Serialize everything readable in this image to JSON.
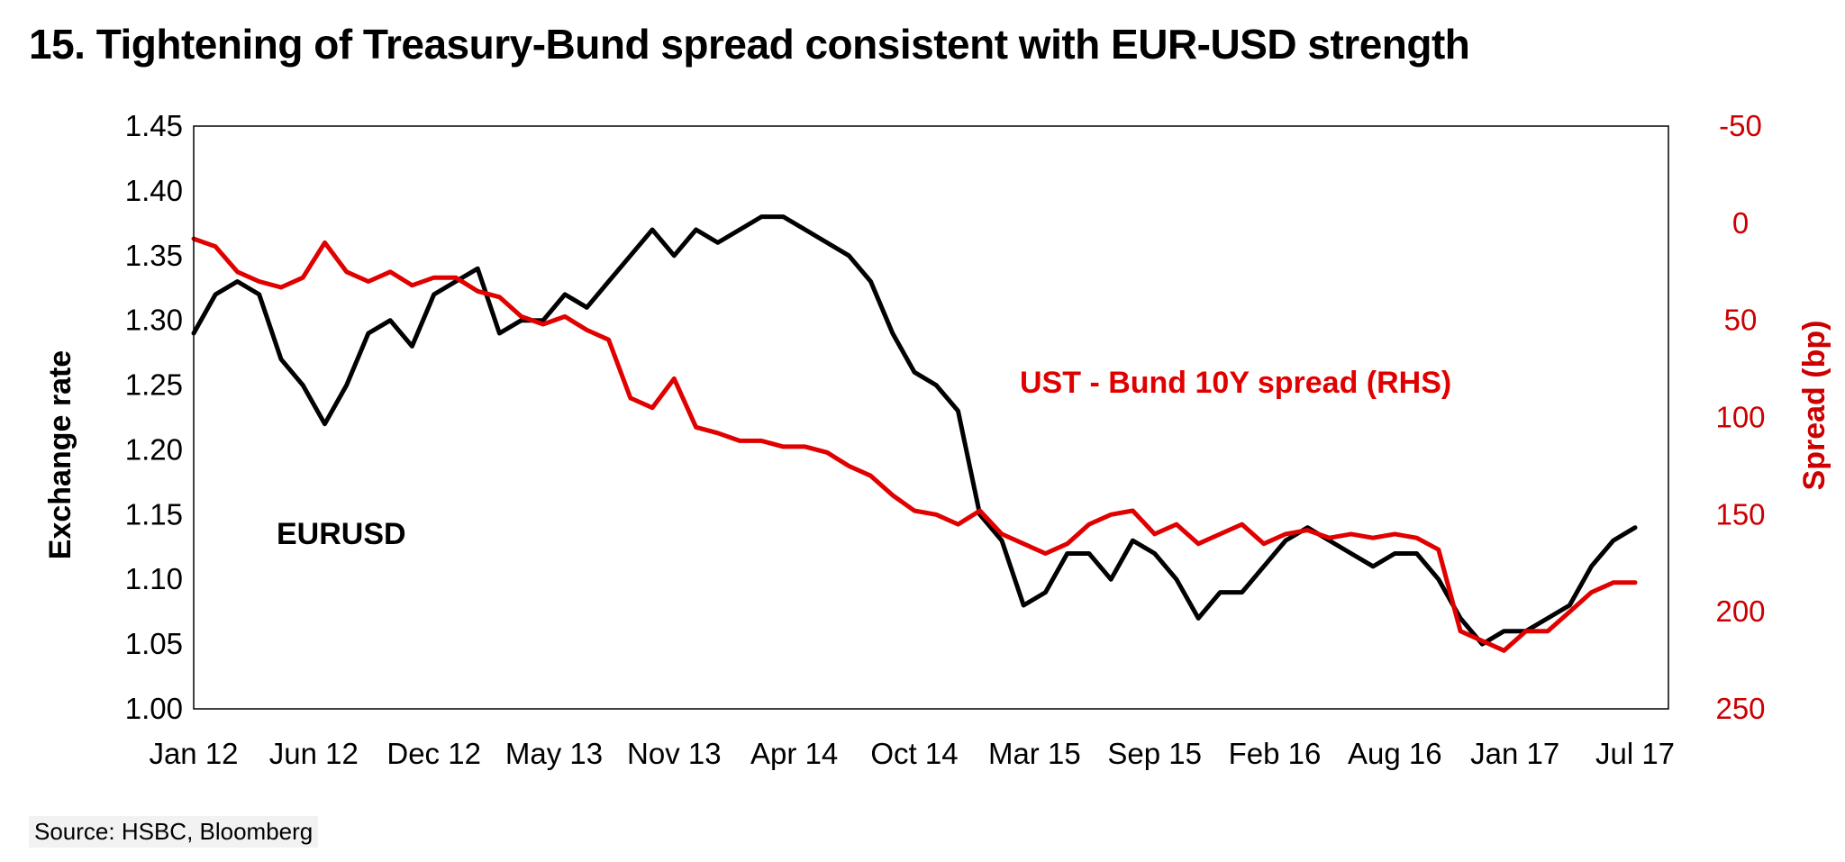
{
  "title": "15. Tightening of Treasury-Bund spread consistent with EUR-USD strength",
  "source": "Source:  HSBC, Bloomberg",
  "colors": {
    "eurusd": "#000000",
    "spread": "#e00000",
    "right_axis": "#cc0000"
  },
  "chart_data": {
    "type": "line",
    "title": "15. Tightening of Treasury-Bund spread consistent with EUR-USD strength",
    "xlabel": "",
    "x_tick_labels": [
      "Jan 12",
      "Jun 12",
      "Dec 12",
      "May 13",
      "Nov 13",
      "Apr 14",
      "Oct 14",
      "Mar 15",
      "Sep 15",
      "Feb 16",
      "Aug 16",
      "Jan 17",
      "Jul 17"
    ],
    "left_axis": {
      "label": "Exchange rate",
      "ylim": [
        1.0,
        1.45
      ],
      "ticks": [
        "1.45",
        "1.40",
        "1.35",
        "1.30",
        "1.25",
        "1.20",
        "1.15",
        "1.10",
        "1.05",
        "1.00"
      ]
    },
    "right_axis": {
      "label": "Spread (bp)",
      "ylim": [
        -50,
        250
      ],
      "inverted": true,
      "ticks": [
        "-50",
        "0",
        "50",
        "100",
        "150",
        "200",
        "250"
      ]
    },
    "grid": false,
    "annotations": {
      "eurusd": "EURUSD",
      "spread": "UST - Bund 10Y spread (RHS)"
    },
    "series": [
      {
        "name": "EURUSD",
        "axis": "left",
        "x": [
          "2012-01",
          "2012-02",
          "2012-03",
          "2012-04",
          "2012-05",
          "2012-06",
          "2012-07",
          "2012-08",
          "2012-09",
          "2012-10",
          "2012-11",
          "2012-12",
          "2013-01",
          "2013-02",
          "2013-03",
          "2013-04",
          "2013-05",
          "2013-06",
          "2013-07",
          "2013-08",
          "2013-09",
          "2013-10",
          "2013-11",
          "2013-12",
          "2014-01",
          "2014-02",
          "2014-03",
          "2014-04",
          "2014-05",
          "2014-06",
          "2014-07",
          "2014-08",
          "2014-09",
          "2014-10",
          "2014-11",
          "2014-12",
          "2015-01",
          "2015-02",
          "2015-03",
          "2015-04",
          "2015-05",
          "2015-06",
          "2015-07",
          "2015-08",
          "2015-09",
          "2015-10",
          "2015-11",
          "2015-12",
          "2016-01",
          "2016-02",
          "2016-03",
          "2016-04",
          "2016-05",
          "2016-06",
          "2016-07",
          "2016-08",
          "2016-09",
          "2016-10",
          "2016-11",
          "2016-12",
          "2017-01",
          "2017-02",
          "2017-03",
          "2017-04",
          "2017-05",
          "2017-06",
          "2017-07"
        ],
        "values": [
          1.29,
          1.32,
          1.33,
          1.32,
          1.27,
          1.25,
          1.22,
          1.25,
          1.29,
          1.3,
          1.28,
          1.32,
          1.33,
          1.34,
          1.29,
          1.3,
          1.3,
          1.32,
          1.31,
          1.33,
          1.35,
          1.37,
          1.35,
          1.37,
          1.36,
          1.37,
          1.38,
          1.38,
          1.37,
          1.36,
          1.35,
          1.33,
          1.29,
          1.26,
          1.25,
          1.23,
          1.15,
          1.13,
          1.08,
          1.09,
          1.12,
          1.12,
          1.1,
          1.13,
          1.12,
          1.1,
          1.07,
          1.09,
          1.09,
          1.11,
          1.13,
          1.14,
          1.13,
          1.12,
          1.11,
          1.12,
          1.12,
          1.1,
          1.07,
          1.05,
          1.06,
          1.06,
          1.07,
          1.08,
          1.11,
          1.13,
          1.14
        ]
      },
      {
        "name": "UST - Bund 10Y spread (RHS)",
        "axis": "right",
        "x": [
          "2012-01",
          "2012-02",
          "2012-03",
          "2012-04",
          "2012-05",
          "2012-06",
          "2012-07",
          "2012-08",
          "2012-09",
          "2012-10",
          "2012-11",
          "2012-12",
          "2013-01",
          "2013-02",
          "2013-03",
          "2013-04",
          "2013-05",
          "2013-06",
          "2013-07",
          "2013-08",
          "2013-09",
          "2013-10",
          "2013-11",
          "2013-12",
          "2014-01",
          "2014-02",
          "2014-03",
          "2014-04",
          "2014-05",
          "2014-06",
          "2014-07",
          "2014-08",
          "2014-09",
          "2014-10",
          "2014-11",
          "2014-12",
          "2015-01",
          "2015-02",
          "2015-03",
          "2015-04",
          "2015-05",
          "2015-06",
          "2015-07",
          "2015-08",
          "2015-09",
          "2015-10",
          "2015-11",
          "2015-12",
          "2016-01",
          "2016-02",
          "2016-03",
          "2016-04",
          "2016-05",
          "2016-06",
          "2016-07",
          "2016-08",
          "2016-09",
          "2016-10",
          "2016-11",
          "2016-12",
          "2017-01",
          "2017-02",
          "2017-03",
          "2017-04",
          "2017-05",
          "2017-06",
          "2017-07"
        ],
        "values": [
          8,
          12,
          25,
          30,
          33,
          28,
          10,
          25,
          30,
          25,
          32,
          28,
          28,
          35,
          38,
          48,
          52,
          48,
          55,
          60,
          90,
          95,
          80,
          105,
          108,
          112,
          112,
          115,
          115,
          118,
          125,
          130,
          140,
          148,
          150,
          155,
          148,
          160,
          165,
          170,
          165,
          155,
          150,
          148,
          160,
          155,
          165,
          160,
          155,
          165,
          160,
          158,
          162,
          160,
          162,
          160,
          162,
          168,
          210,
          215,
          220,
          210,
          210,
          200,
          190,
          185,
          185
        ]
      }
    ]
  }
}
